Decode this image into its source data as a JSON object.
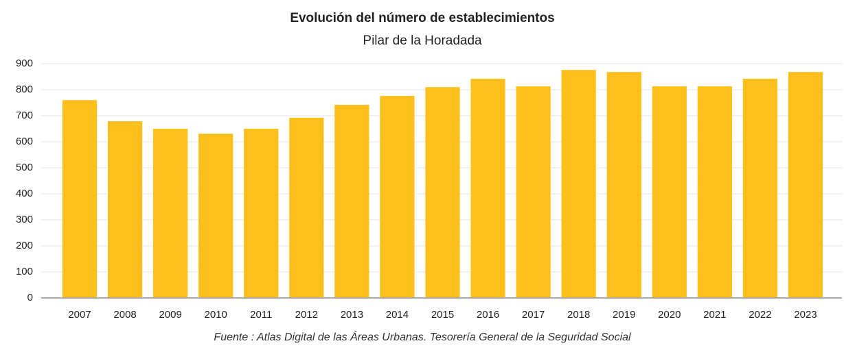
{
  "chart_data": {
    "type": "bar",
    "title": "Evolución del número de establecimientos",
    "subtitle": "Pilar de la Horadada",
    "source": "Fuente : Atlas Digital de las Áreas Urbanas. Tesorería General de la Seguridad Social",
    "categories": [
      "2007",
      "2008",
      "2009",
      "2010",
      "2011",
      "2012",
      "2013",
      "2014",
      "2015",
      "2016",
      "2017",
      "2018",
      "2019",
      "2020",
      "2021",
      "2022",
      "2023"
    ],
    "values": [
      760,
      679,
      650,
      631,
      650,
      692,
      742,
      776,
      810,
      842,
      813,
      876,
      868,
      813,
      813,
      842,
      868
    ],
    "color": "#fdbf1b",
    "ylim": [
      0,
      900
    ],
    "yticks": [
      0,
      100,
      200,
      300,
      400,
      500,
      600,
      700,
      800,
      900
    ],
    "grid": true
  }
}
